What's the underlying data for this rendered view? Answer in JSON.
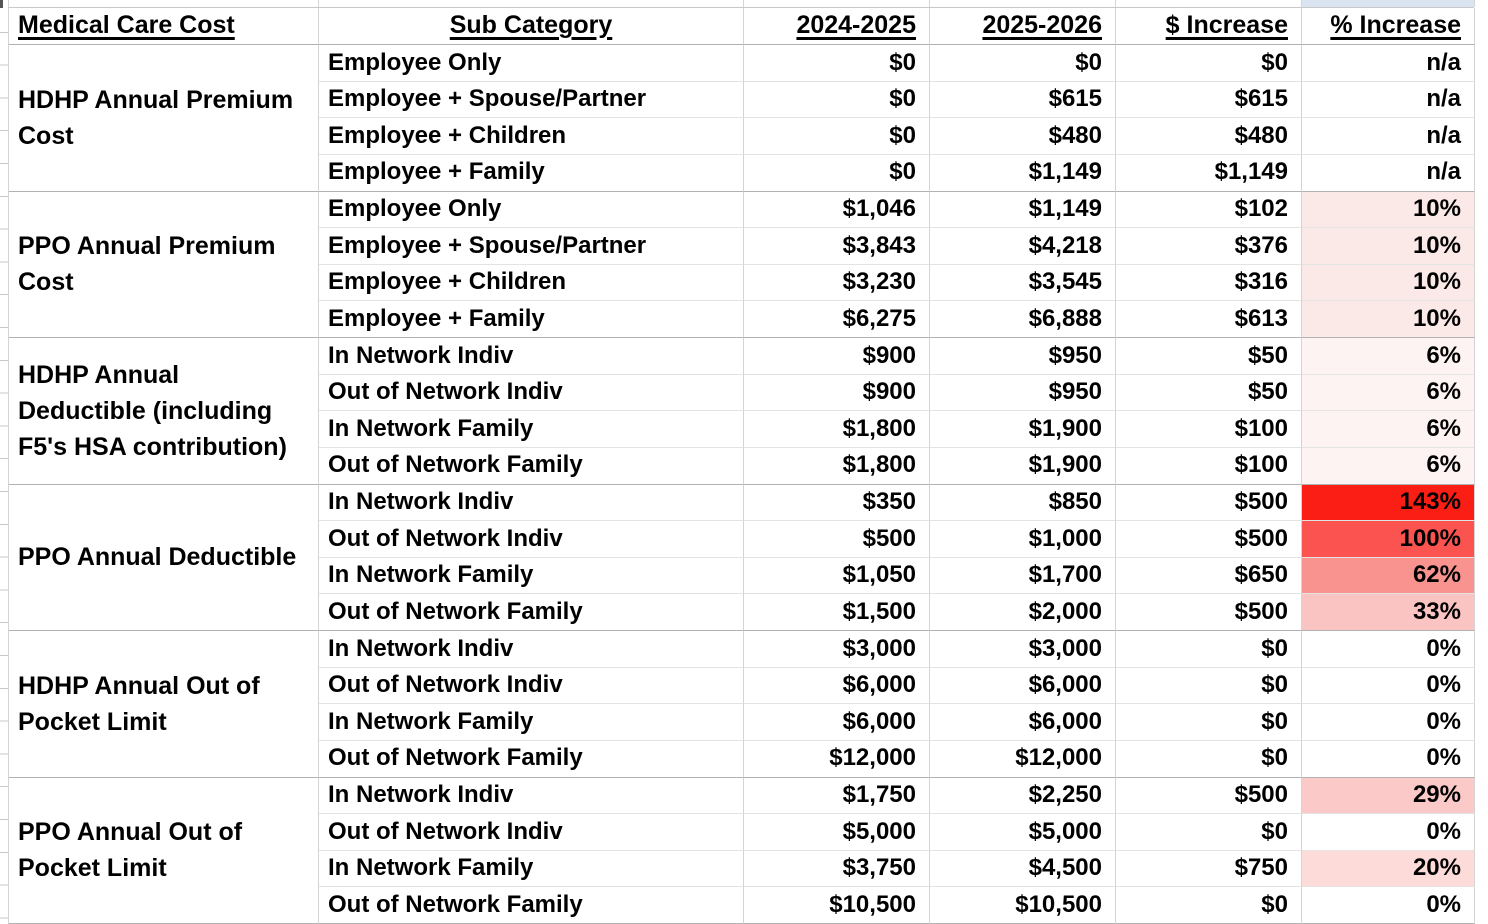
{
  "colors": {
    "top_strip_highlight": "#dbe5f1",
    "heat_143": "#fb1e15",
    "heat_100": "#fb5450",
    "heat_62": "#f8938f",
    "heat_33": "#fac4c3",
    "heat_29": "#fbcac8",
    "heat_20": "#fcdbd9",
    "heat_10": "#fbe9e8",
    "heat_6": "#fdf3f2",
    "no_change": "#ffffff"
  },
  "header": {
    "columns": [
      {
        "label": "Medical Care Cost"
      },
      {
        "label": "Sub Category"
      },
      {
        "label": "2024-2025"
      },
      {
        "label": "2025-2026"
      },
      {
        "label": "$ Increase"
      },
      {
        "label": "% Increase"
      }
    ]
  },
  "groups": [
    {
      "category": "HDHP Annual Premium\nCost",
      "rows": [
        {
          "sub": "Employee Only",
          "y2024": "$0",
          "y2025": "$0",
          "inc": "$0",
          "pct": "n/a",
          "pct_bg": "#ffffff"
        },
        {
          "sub": "Employee + Spouse/Partner",
          "y2024": "$0",
          "y2025": "$615",
          "inc": "$615",
          "pct": "n/a",
          "pct_bg": "#ffffff"
        },
        {
          "sub": "Employee + Children",
          "y2024": "$0",
          "y2025": "$480",
          "inc": "$480",
          "pct": "n/a",
          "pct_bg": "#ffffff"
        },
        {
          "sub": "Employee + Family",
          "y2024": "$0",
          "y2025": "$1,149",
          "inc": "$1,149",
          "pct": "n/a",
          "pct_bg": "#ffffff"
        }
      ]
    },
    {
      "category": "PPO Annual Premium\nCost",
      "rows": [
        {
          "sub": "Employee Only",
          "y2024": "$1,046",
          "y2025": "$1,149",
          "inc": "$102",
          "pct": "10%",
          "pct_bg": "#fbe9e8"
        },
        {
          "sub": "Employee + Spouse/Partner",
          "y2024": "$3,843",
          "y2025": "$4,218",
          "inc": "$376",
          "pct": "10%",
          "pct_bg": "#fbe9e8"
        },
        {
          "sub": "Employee + Children",
          "y2024": "$3,230",
          "y2025": "$3,545",
          "inc": "$316",
          "pct": "10%",
          "pct_bg": "#fbe9e8"
        },
        {
          "sub": "Employee + Family",
          "y2024": "$6,275",
          "y2025": "$6,888",
          "inc": "$613",
          "pct": "10%",
          "pct_bg": "#fbe9e8"
        }
      ]
    },
    {
      "category": "HDHP Annual\nDeductible (including\nF5's HSA contribution)",
      "rows": [
        {
          "sub": "In Network Indiv",
          "y2024": "$900",
          "y2025": "$950",
          "inc": "$50",
          "pct": "6%",
          "pct_bg": "#fdf3f2"
        },
        {
          "sub": "Out of Network Indiv",
          "y2024": "$900",
          "y2025": "$950",
          "inc": "$50",
          "pct": "6%",
          "pct_bg": "#fdf3f2"
        },
        {
          "sub": "In Network Family",
          "y2024": "$1,800",
          "y2025": "$1,900",
          "inc": "$100",
          "pct": "6%",
          "pct_bg": "#fdf3f2"
        },
        {
          "sub": "Out of Network Family",
          "y2024": "$1,800",
          "y2025": "$1,900",
          "inc": "$100",
          "pct": "6%",
          "pct_bg": "#fdf3f2"
        }
      ]
    },
    {
      "category": "PPO Annual Deductible",
      "rows": [
        {
          "sub": "In Network Indiv",
          "y2024": "$350",
          "y2025": "$850",
          "inc": "$500",
          "pct": "143%",
          "pct_bg": "#fb1e15"
        },
        {
          "sub": "Out of Network Indiv",
          "y2024": "$500",
          "y2025": "$1,000",
          "inc": "$500",
          "pct": "100%",
          "pct_bg": "#fb5450"
        },
        {
          "sub": "In Network Family",
          "y2024": "$1,050",
          "y2025": "$1,700",
          "inc": "$650",
          "pct": "62%",
          "pct_bg": "#f8938f"
        },
        {
          "sub": "Out of Network Family",
          "y2024": "$1,500",
          "y2025": "$2,000",
          "inc": "$500",
          "pct": "33%",
          "pct_bg": "#fac4c3"
        }
      ]
    },
    {
      "category": "HDHP Annual Out of\nPocket Limit",
      "rows": [
        {
          "sub": "In Network Indiv",
          "y2024": "$3,000",
          "y2025": "$3,000",
          "inc": "$0",
          "pct": "0%",
          "pct_bg": "#ffffff"
        },
        {
          "sub": "Out of Network Indiv",
          "y2024": "$6,000",
          "y2025": "$6,000",
          "inc": "$0",
          "pct": "0%",
          "pct_bg": "#ffffff"
        },
        {
          "sub": "In Network Family",
          "y2024": "$6,000",
          "y2025": "$6,000",
          "inc": "$0",
          "pct": "0%",
          "pct_bg": "#ffffff"
        },
        {
          "sub": "Out of Network Family",
          "y2024": "$12,000",
          "y2025": "$12,000",
          "inc": "$0",
          "pct": "0%",
          "pct_bg": "#ffffff"
        }
      ]
    },
    {
      "category": "PPO Annual Out of\nPocket Limit",
      "rows": [
        {
          "sub": "In Network Indiv",
          "y2024": "$1,750",
          "y2025": "$2,250",
          "inc": "$500",
          "pct": "29%",
          "pct_bg": "#fbcac8"
        },
        {
          "sub": "Out of Network Indiv",
          "y2024": "$5,000",
          "y2025": "$5,000",
          "inc": "$0",
          "pct": "0%",
          "pct_bg": "#ffffff"
        },
        {
          "sub": "In Network Family",
          "y2024": "$3,750",
          "y2025": "$4,500",
          "inc": "$750",
          "pct": "20%",
          "pct_bg": "#fcdbd9"
        },
        {
          "sub": "Out of Network Family",
          "y2024": "$10,500",
          "y2025": "$10,500",
          "inc": "$0",
          "pct": "0%",
          "pct_bg": "#ffffff"
        }
      ]
    }
  ]
}
